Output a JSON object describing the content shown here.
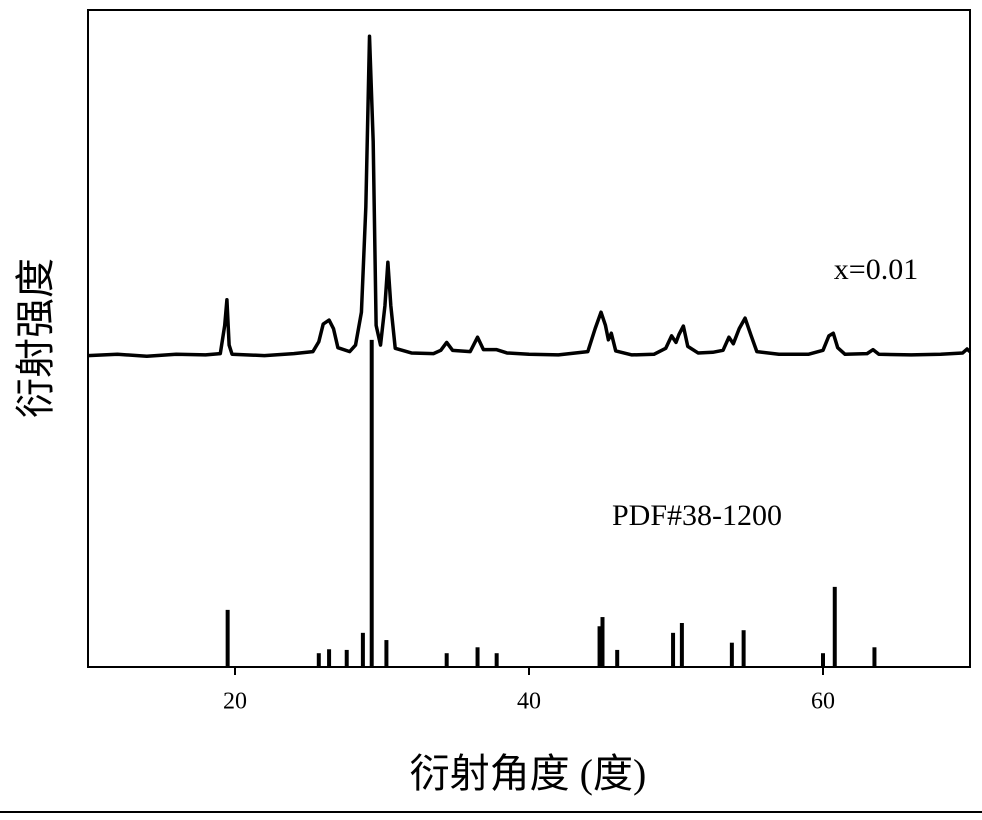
{
  "chart_data": [
    {
      "type": "line",
      "xlabel": "衍射角度 (度)",
      "ylabel": "衍射强度",
      "annotation": "x=0.01",
      "xlim": [
        10,
        70
      ],
      "ylim": [
        0,
        100
      ],
      "xticks": [
        20,
        40,
        60
      ],
      "color": "#000000",
      "x": [
        10.0,
        12,
        14,
        16,
        18,
        19.0,
        19.3,
        19.45,
        19.6,
        19.8,
        22,
        24,
        25.3,
        25.7,
        26.0,
        26.4,
        26.7,
        27.0,
        27.8,
        28.2,
        28.6,
        28.9,
        29.15,
        29.4,
        29.6,
        29.9,
        30.2,
        30.4,
        30.6,
        30.9,
        32,
        33.5,
        34.0,
        34.4,
        34.8,
        36.0,
        36.5,
        36.9,
        37.8,
        38.5,
        40,
        42,
        44.0,
        44.5,
        44.9,
        45.2,
        45.4,
        45.6,
        45.9,
        47,
        48.5,
        49.3,
        49.7,
        50.0,
        50.2,
        50.5,
        50.8,
        51.5,
        52.5,
        53.2,
        53.6,
        53.9,
        54.3,
        54.7,
        55.1,
        55.5,
        57,
        59,
        60.0,
        60.4,
        60.7,
        61.0,
        61.5,
        63.0,
        63.4,
        63.8,
        66,
        68,
        69.5,
        69.8,
        70
      ],
      "values": [
        47.4,
        47.6,
        47.3,
        47.6,
        47.5,
        47.7,
        52,
        55.9,
        49,
        47.6,
        47.4,
        47.7,
        48.0,
        49.5,
        52.2,
        52.8,
        51.5,
        48.6,
        48.0,
        49,
        54,
        70,
        96.0,
        80,
        52,
        49,
        55,
        61.6,
        55,
        48.5,
        47.8,
        47.7,
        48.2,
        49.4,
        48.2,
        48.0,
        50.2,
        48.3,
        48.3,
        47.8,
        47.6,
        47.5,
        48.0,
        51.5,
        54.0,
        52,
        49.8,
        50.8,
        48.1,
        47.5,
        47.6,
        48.5,
        50.4,
        49.4,
        50.6,
        51.9,
        48.8,
        47.8,
        47.9,
        48.2,
        50.2,
        49.2,
        51.5,
        53.1,
        50.5,
        48.0,
        47.6,
        47.6,
        48.2,
        50.4,
        50.8,
        48.6,
        47.6,
        47.7,
        48.3,
        47.6,
        47.5,
        47.6,
        47.8,
        48.4,
        48.0
      ]
    },
    {
      "type": "stem",
      "annotation": "PDF#38-1200",
      "color": "#000000",
      "x": [
        19.5,
        25.7,
        26.4,
        27.6,
        28.7,
        29.3,
        30.3,
        34.4,
        36.5,
        37.8,
        44.8,
        45.0,
        46.0,
        49.8,
        50.4,
        53.8,
        54.6,
        60.0,
        60.8,
        63.5
      ],
      "values": [
        8.7,
        2.1,
        2.7,
        2.6,
        5.2,
        49.8,
        4.1,
        2.1,
        3.0,
        2.1,
        6.2,
        7.6,
        2.6,
        5.2,
        6.7,
        3.7,
        5.6,
        2.1,
        12.2,
        3.0
      ]
    }
  ]
}
